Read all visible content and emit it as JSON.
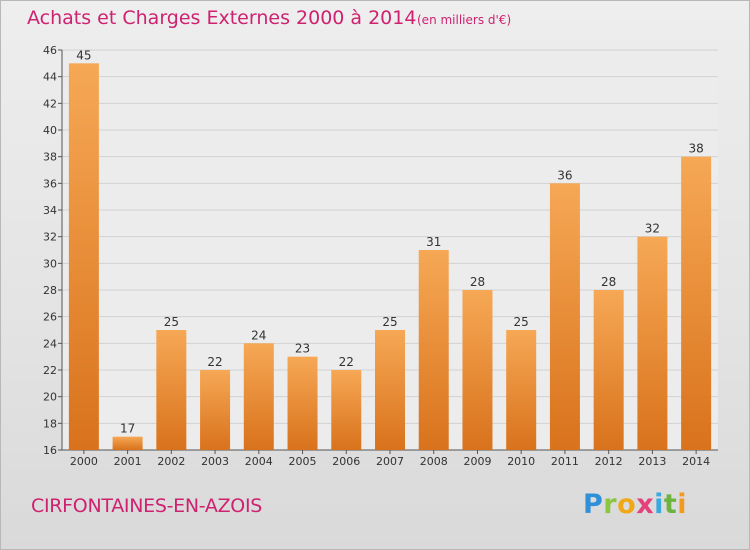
{
  "title": "Achats et Charges Externes 2000 à 2014",
  "subtitle": "(en milliers d'€)",
  "place": "CIRFONTAINES-EN-AZOIS",
  "logo": {
    "letters": [
      "P",
      "r",
      "o",
      "x",
      "i",
      "t",
      "i"
    ]
  },
  "colors": {
    "bar_light": "#f6a855",
    "bar_dark": "#d9721c",
    "text_accent": "#ce2270"
  },
  "chart_data": {
    "type": "bar",
    "title": "Achats et Charges Externes 2000 à 2014",
    "subtitle": "(en milliers d'€)",
    "xlabel": "",
    "ylabel": "",
    "categories": [
      "2000",
      "2001",
      "2002",
      "2003",
      "2004",
      "2005",
      "2006",
      "2007",
      "2008",
      "2009",
      "2010",
      "2011",
      "2012",
      "2013",
      "2014"
    ],
    "values": [
      45,
      17,
      25,
      22,
      24,
      23,
      22,
      25,
      31,
      28,
      25,
      36,
      28,
      32,
      38
    ],
    "ylim": [
      16,
      46
    ],
    "yticks": [
      16,
      18,
      20,
      22,
      24,
      26,
      28,
      30,
      32,
      34,
      36,
      38,
      40,
      42,
      44,
      46
    ],
    "grid": true,
    "legend": "none"
  }
}
